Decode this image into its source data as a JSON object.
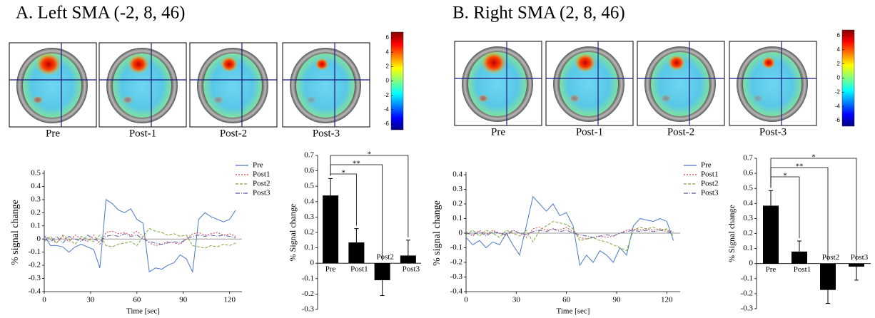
{
  "panels": [
    {
      "title": "A. Left SMA (-2, 8, 46)",
      "images": [
        "Pre",
        "Post-1",
        "Post-2",
        "Post-3"
      ],
      "colorbar_ticks": [
        6,
        4,
        2,
        0,
        -2,
        -4,
        -6
      ]
    },
    {
      "title": "B. Right SMA (2, 8, 46)",
      "images": [
        "Pre",
        "Post-1",
        "Post-2",
        "Post-3"
      ],
      "colorbar_ticks": [
        6,
        4,
        2,
        0,
        -2,
        -4,
        -6
      ]
    }
  ],
  "chart_data": [
    {
      "type": "line",
      "xlabel": "Time [sec]",
      "ylabel": "% signal change",
      "legend": "upper right",
      "x": [
        0,
        4,
        8,
        12,
        16,
        20,
        24,
        28,
        32,
        36,
        40,
        44,
        48,
        52,
        56,
        60,
        64,
        68,
        72,
        76,
        80,
        84,
        88,
        92,
        96,
        100,
        104,
        108,
        112,
        116,
        120,
        124
      ],
      "xlim": [
        0,
        128
      ],
      "xticks": [
        0,
        30,
        60,
        90,
        120
      ],
      "ylim": [
        -0.4,
        0.5
      ],
      "yticks": [
        -0.4,
        -0.3,
        -0.2,
        -0.1,
        0,
        0.1,
        0.2,
        0.3,
        0.4,
        0.5
      ],
      "series": [
        {
          "name": "Pre",
          "color": "#4a78c8",
          "values": [
            0.03,
            -0.05,
            -0.05,
            -0.06,
            -0.1,
            -0.06,
            -0.04,
            -0.06,
            -0.08,
            -0.22,
            0.3,
            0.27,
            0.22,
            0.2,
            0.23,
            0.15,
            0.12,
            -0.25,
            -0.22,
            -0.23,
            -0.2,
            -0.18,
            -0.12,
            -0.15,
            -0.25,
            0.15,
            0.2,
            0.17,
            0.15,
            0.13,
            0.15,
            0.22
          ]
        },
        {
          "name": "Post1",
          "color": "#d0404a",
          "values": [
            0.02,
            0,
            -0.03,
            0.02,
            -0.02,
            0.03,
            0,
            -0.02,
            0.03,
            -0.04,
            0.05,
            0.06,
            0.04,
            0.05,
            0.03,
            0.06,
            0.02,
            -0.03,
            -0.05,
            -0.04,
            -0.02,
            -0.03,
            -0.04,
            0,
            0.04,
            0.05,
            0.03,
            0.04,
            0.05,
            0.03,
            0.04,
            0.02
          ]
        },
        {
          "name": "Post2",
          "color": "#7aa83a",
          "values": [
            -0.02,
            0.02,
            -0.03,
            0.03,
            0,
            -0.04,
            0.02,
            0,
            -0.02,
            0.03,
            -0.05,
            -0.06,
            -0.04,
            -0.03,
            -0.02,
            -0.05,
            0.02,
            0.08,
            0.06,
            0.05,
            0.03,
            0.04,
            0.02,
            0.03,
            -0.05,
            -0.06,
            -0.07,
            -0.05,
            -0.06,
            -0.04,
            -0.05,
            -0.03
          ]
        },
        {
          "name": "Post3",
          "color": "#5a5aa8",
          "values": [
            0,
            -0.02,
            0.02,
            -0.03,
            0.02,
            0,
            -0.02,
            0.03,
            0,
            -0.02,
            0.02,
            0.03,
            0.02,
            0.04,
            0.02,
            0.03,
            0,
            -0.02,
            -0.03,
            -0.04,
            -0.03,
            -0.02,
            -0.03,
            0,
            0.02,
            0.03,
            0.02,
            0.03,
            0.02,
            0.03,
            0.02,
            0.01
          ]
        }
      ]
    },
    {
      "type": "bar",
      "ylabel": "% Signal change",
      "categories": [
        "Pre",
        "Post1",
        "Post2",
        "Post3"
      ],
      "values": [
        0.44,
        0.135,
        -0.11,
        0.05
      ],
      "error": [
        0.11,
        0.09,
        0.1,
        0.1
      ],
      "color": "#000000",
      "ylim": [
        -0.3,
        0.7
      ],
      "yticks": [
        -0.3,
        -0.2,
        -0.1,
        0,
        0.1,
        0.2,
        0.3,
        0.4,
        0.5,
        0.6,
        0.7
      ],
      "annotations": [
        "*",
        "**",
        "*"
      ]
    },
    {
      "type": "line",
      "xlabel": "Time [sec]",
      "ylabel": "% signal change",
      "legend": "upper right",
      "x": [
        0,
        4,
        8,
        12,
        16,
        20,
        24,
        28,
        32,
        36,
        40,
        44,
        48,
        52,
        56,
        60,
        64,
        68,
        72,
        76,
        80,
        84,
        88,
        92,
        96,
        100,
        104,
        108,
        112,
        116,
        120,
        124
      ],
      "xlim": [
        0,
        128
      ],
      "xticks": [
        0,
        30,
        60,
        90,
        120
      ],
      "ylim": [
        -0.4,
        0.4
      ],
      "yticks": [
        -0.4,
        -0.3,
        -0.2,
        -0.1,
        0,
        0.1,
        0.2,
        0.3,
        0.4
      ],
      "series": [
        {
          "name": "Pre",
          "color": "#4a78c8",
          "values": [
            -0.03,
            -0.08,
            -0.05,
            -0.1,
            -0.06,
            -0.08,
            0,
            -0.08,
            -0.15,
            0.05,
            0.25,
            0.2,
            0.15,
            0.2,
            0.12,
            0.14,
            0.05,
            -0.22,
            -0.15,
            -0.2,
            -0.12,
            -0.15,
            -0.2,
            -0.1,
            -0.15,
            0.05,
            0.1,
            0.09,
            0.08,
            0.1,
            0.08,
            -0.05
          ]
        },
        {
          "name": "Post1",
          "color": "#d0404a",
          "values": [
            0.01,
            -0.02,
            0.02,
            -0.01,
            0.02,
            0,
            -0.02,
            0.02,
            0,
            -0.03,
            0.03,
            0.04,
            0.02,
            0.03,
            0.02,
            0.04,
            0.01,
            -0.03,
            -0.04,
            -0.03,
            -0.02,
            -0.03,
            -0.02,
            0,
            0.02,
            0.03,
            0.02,
            0.03,
            0.02,
            0.03,
            0.02,
            0.01
          ]
        },
        {
          "name": "Post2",
          "color": "#7aa83a",
          "values": [
            -0.01,
            0.02,
            -0.02,
            0.02,
            0,
            -0.03,
            0.02,
            0,
            -0.02,
            0.02,
            -0.06,
            0.02,
            0.05,
            0.08,
            0.07,
            0.06,
            0.03,
            -0.05,
            -0.04,
            -0.03,
            -0.05,
            -0.06,
            -0.08,
            -0.1,
            -0.12,
            0.02,
            0.04,
            0.03,
            0.04,
            0.02,
            0.03,
            -0.02
          ]
        },
        {
          "name": "Post3",
          "color": "#5a5aa8",
          "values": [
            0,
            -0.01,
            0.01,
            -0.02,
            0.01,
            0,
            -0.01,
            0.02,
            0,
            -0.01,
            0.01,
            0.02,
            0.01,
            0.03,
            0.01,
            0.02,
            0,
            -0.01,
            -0.02,
            -0.03,
            -0.02,
            -0.01,
            -0.02,
            0,
            0.01,
            0.02,
            0.01,
            0.02,
            0.01,
            0.02,
            0.01,
            0
          ]
        }
      ]
    },
    {
      "type": "bar",
      "ylabel": "% Signal change",
      "categories": [
        "Pre",
        "Post1",
        "Post2",
        "Post3"
      ],
      "values": [
        0.385,
        0.08,
        -0.175,
        -0.02
      ],
      "error": [
        0.1,
        0.07,
        0.09,
        0.09
      ],
      "color": "#000000",
      "ylim": [
        -0.3,
        0.7
      ],
      "yticks": [
        -0.3,
        -0.2,
        -0.1,
        0,
        0.1,
        0.2,
        0.3,
        0.4,
        0.5,
        0.6,
        0.7
      ],
      "annotations": [
        "*",
        "**",
        "*"
      ]
    }
  ]
}
